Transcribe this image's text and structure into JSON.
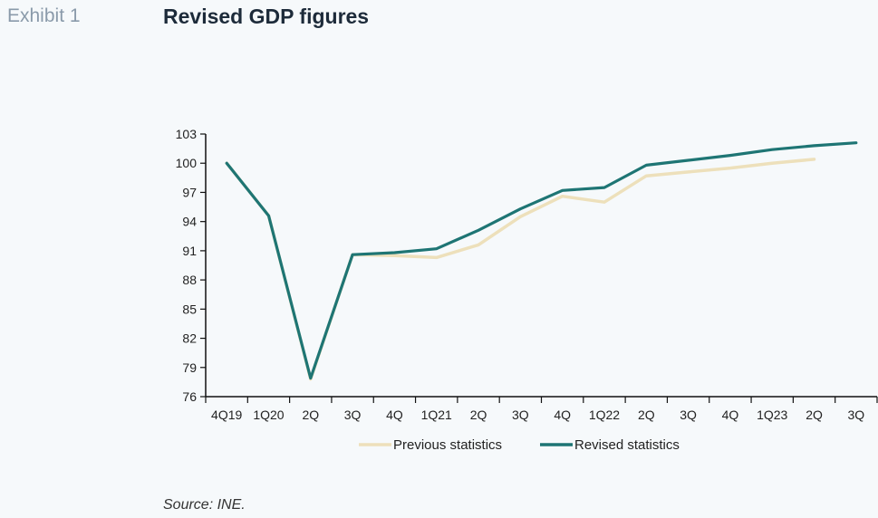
{
  "header": {
    "exhibit": "Exhibit 1",
    "title": "Revised GDP figures"
  },
  "footer": {
    "source": "Source: INE."
  },
  "colors": {
    "previous": "#ede0bb",
    "revised": "#1e7574",
    "axis": "#111111"
  },
  "chart_data": {
    "type": "line",
    "categories": [
      "4Q19",
      "1Q20",
      "2Q",
      "3Q",
      "4Q",
      "1Q21",
      "2Q",
      "3Q",
      "4Q",
      "1Q22",
      "2Q",
      "3Q",
      "4Q",
      "1Q23",
      "2Q",
      "3Q"
    ],
    "ylim": [
      76,
      103
    ],
    "yticks": [
      76,
      79,
      82,
      85,
      88,
      91,
      94,
      97,
      100,
      103
    ],
    "grid": false,
    "legend_position": "bottom",
    "series": [
      {
        "name": "Previous statistics",
        "color_key": "previous",
        "values": [
          100.0,
          94.6,
          77.8,
          90.6,
          90.5,
          90.3,
          91.6,
          94.5,
          96.6,
          96.0,
          98.7,
          99.1,
          99.5,
          100.0,
          100.4,
          null
        ]
      },
      {
        "name": "Revised statistics",
        "color_key": "revised",
        "values": [
          100.0,
          94.6,
          77.9,
          90.6,
          90.8,
          91.2,
          93.1,
          95.3,
          97.2,
          97.5,
          99.8,
          100.3,
          100.8,
          101.4,
          101.8,
          102.1
        ]
      }
    ]
  }
}
